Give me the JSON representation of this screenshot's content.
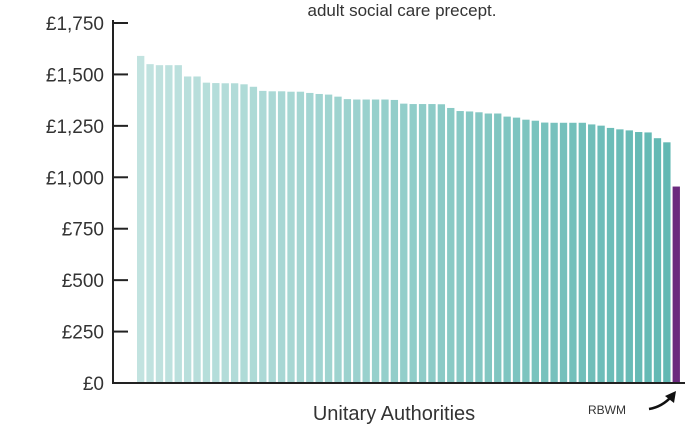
{
  "chart_data": {
    "type": "bar",
    "title": "adult social care precept.",
    "xlabel": "Unitary Authorities",
    "ylabel": "",
    "ylim": [
      0,
      1750
    ],
    "yticks": [
      {
        "value": 0,
        "label": "£0"
      },
      {
        "value": 250,
        "label": "£250"
      },
      {
        "value": 500,
        "label": "£500"
      },
      {
        "value": 750,
        "label": "£750"
      },
      {
        "value": 1000,
        "label": "£1,000"
      },
      {
        "value": 1250,
        "label": "£1,250"
      },
      {
        "value": 1500,
        "label": "£1,500"
      },
      {
        "value": 1750,
        "label": "£1,750"
      }
    ],
    "grid": false,
    "values": [
      1590,
      1550,
      1545,
      1545,
      1545,
      1490,
      1490,
      1460,
      1458,
      1457,
      1457,
      1452,
      1440,
      1420,
      1418,
      1418,
      1416,
      1416,
      1410,
      1405,
      1402,
      1392,
      1380,
      1378,
      1378,
      1378,
      1378,
      1376,
      1358,
      1356,
      1356,
      1356,
      1355,
      1337,
      1322,
      1320,
      1316,
      1310,
      1310,
      1295,
      1290,
      1280,
      1275,
      1266,
      1265,
      1265,
      1265,
      1265,
      1257,
      1251,
      1240,
      1233,
      1228,
      1220,
      1218,
      1190,
      1170,
      955
    ],
    "highlight": {
      "index": 57,
      "label": "RBWM",
      "color": "#6b2a7e"
    },
    "colors": {
      "start": "#c2e3e0",
      "end": "#62b8b3",
      "axis": "#222222",
      "text": "#333333"
    }
  }
}
